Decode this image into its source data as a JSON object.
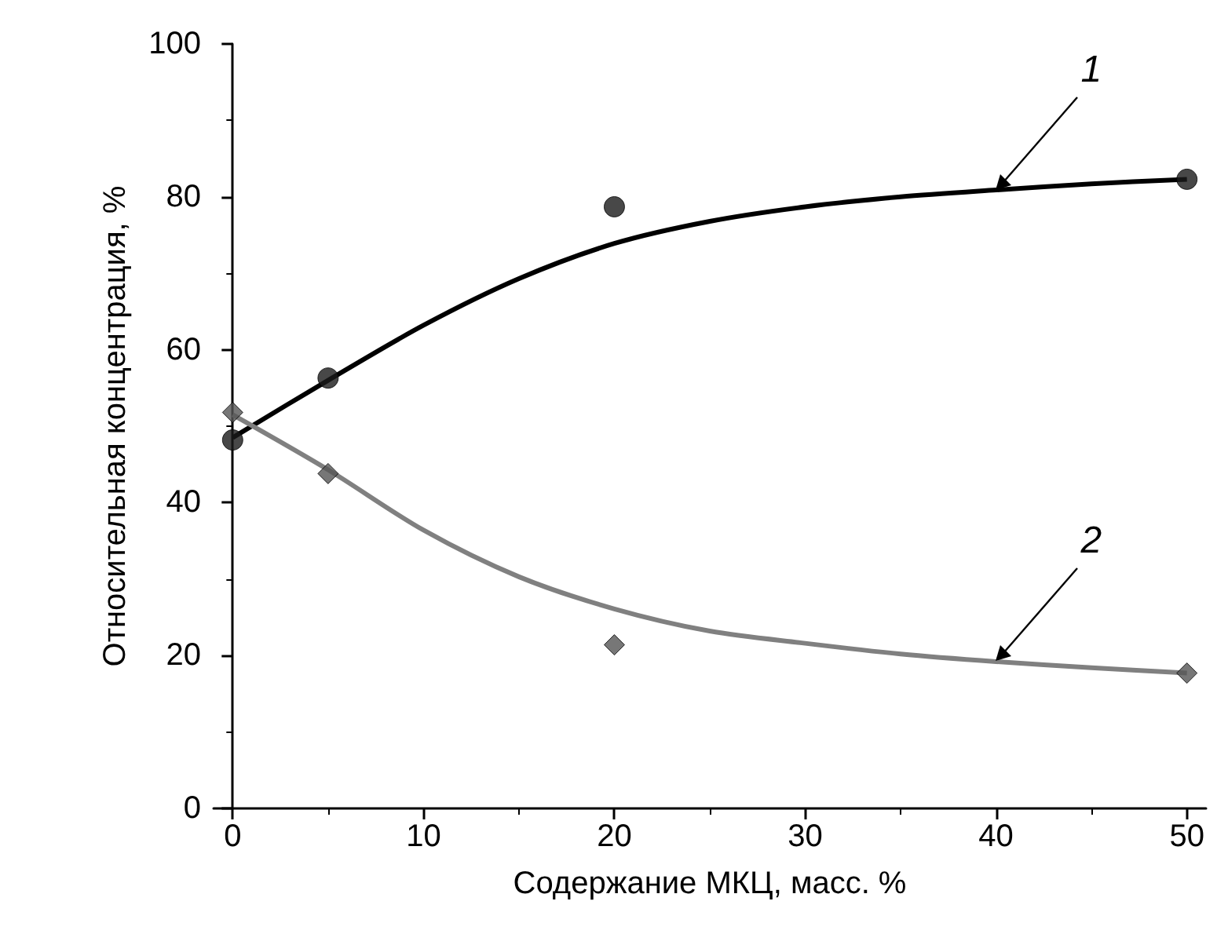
{
  "chart_data": {
    "type": "scatter",
    "xlabel": "Содержание МКЦ, масс. %",
    "ylabel": "Относительная концентрация, %",
    "x": [
      0,
      5,
      20,
      50
    ],
    "series": [
      {
        "marker": "circle",
        "color": "#1a1a1a",
        "values": [
          48.2,
          56.3,
          78.7,
          82.3
        ]
      },
      {
        "marker": "diamond",
        "color": "#555555",
        "values": [
          51.8,
          43.8,
          21.4,
          17.7
        ]
      },
      {
        "type": "line",
        "marker": "none",
        "color": "#000000",
        "x": [
          0,
          5,
          10,
          15,
          20,
          25,
          30,
          35,
          40,
          45,
          50
        ],
        "values": [
          48.5,
          56,
          63.2,
          69.3,
          73.9,
          76.8,
          78.7,
          80,
          80.9,
          81.7,
          82.3
        ]
      },
      {
        "type": "line",
        "marker": "none",
        "color": "#808080",
        "x": [
          0,
          5,
          10,
          15,
          20,
          25,
          30,
          35,
          40,
          45,
          50
        ],
        "values": [
          51.5,
          44.3,
          36.4,
          30.3,
          26.1,
          23.2,
          21.6,
          20.2,
          19.2,
          18.4,
          17.7
        ]
      }
    ],
    "annotations": [
      {
        "text": "1",
        "x": 40,
        "y": 80.9
      },
      {
        "text": "2",
        "x": 40,
        "y": 19.2
      }
    ],
    "xlim": [
      -1,
      51
    ],
    "xticks": [
      0,
      10,
      20,
      30,
      40,
      50
    ],
    "ylim": [
      0,
      100
    ],
    "yticks": [
      0,
      20,
      40,
      60,
      80,
      100
    ],
    "grid": false
  }
}
